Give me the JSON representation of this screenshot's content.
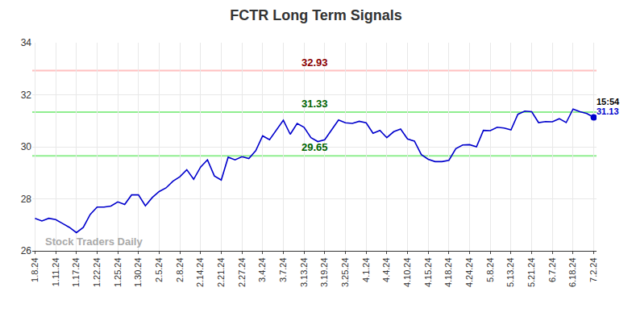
{
  "chart_data": {
    "type": "line",
    "title": "FCTR Long Term Signals",
    "categories": [
      "1.8.24",
      null,
      null,
      "1.11.24",
      null,
      null,
      "1.17.24",
      null,
      null,
      "1.22.24",
      null,
      null,
      "1.25.24",
      null,
      null,
      "1.30.24",
      null,
      null,
      "2.5.24",
      null,
      null,
      "2.8.24",
      null,
      null,
      "2.14.24",
      null,
      null,
      "2.21.24",
      null,
      null,
      "2.27.24",
      null,
      null,
      "3.4.24",
      null,
      null,
      "3.7.24",
      null,
      null,
      "3.13.24",
      null,
      null,
      "3.19.24",
      null,
      null,
      "3.25.24",
      null,
      null,
      "4.1.24",
      null,
      null,
      "4.4.24",
      null,
      null,
      "4.10.24",
      null,
      null,
      "4.15.24",
      null,
      null,
      "4.18.24",
      null,
      null,
      "4.24.24",
      null,
      null,
      "5.8.24",
      null,
      null,
      "5.13.24",
      null,
      null,
      "5.21.24",
      null,
      null,
      "6.7.24",
      null,
      null,
      "6.18.24",
      null,
      null,
      "7.2.24"
    ],
    "values": [
      27.25,
      27.15,
      27.25,
      27.2,
      27.05,
      26.9,
      26.7,
      26.9,
      27.4,
      27.68,
      27.68,
      27.72,
      27.88,
      27.78,
      28.15,
      28.15,
      27.73,
      28.05,
      28.28,
      28.42,
      28.68,
      28.85,
      29.12,
      28.75,
      29.22,
      29.5,
      28.88,
      28.72,
      29.6,
      29.5,
      29.62,
      29.55,
      29.85,
      30.42,
      30.27,
      30.65,
      31.02,
      30.48,
      30.9,
      30.75,
      30.35,
      30.2,
      30.27,
      30.65,
      31.03,
      30.92,
      30.9,
      30.98,
      30.92,
      30.52,
      30.63,
      30.35,
      30.58,
      30.68,
      30.3,
      30.22,
      29.7,
      29.52,
      29.43,
      29.43,
      29.48,
      29.93,
      30.07,
      30.08,
      30.0,
      30.63,
      30.62,
      30.75,
      30.72,
      30.65,
      31.25,
      31.37,
      31.35,
      30.93,
      30.97,
      30.96,
      31.08,
      30.93,
      31.45,
      31.35,
      31.28,
      31.13
    ],
    "color": "#0000cc",
    "ylim": [
      26,
      34
    ],
    "yticks": [
      26,
      28,
      30,
      32,
      34
    ],
    "grid": true,
    "levels": [
      {
        "value": 32.93,
        "color": "#ffc0c0",
        "label_color": "#8b0000"
      },
      {
        "value": 31.33,
        "color": "#90ee90",
        "label_color": "#006400"
      },
      {
        "value": 29.65,
        "color": "#90ee90",
        "label_color": "#006400"
      }
    ],
    "last_point_time": "15:54",
    "watermark": "Stock Traders Daily"
  }
}
